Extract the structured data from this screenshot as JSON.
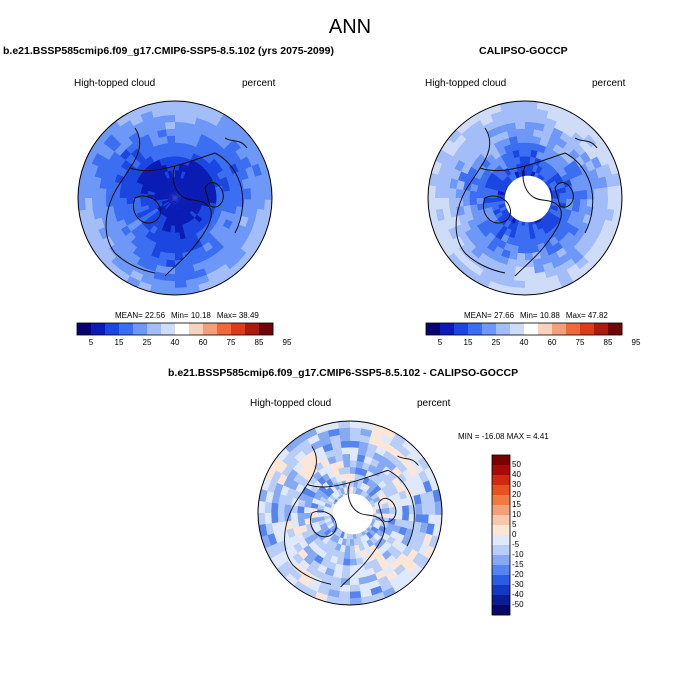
{
  "header": {
    "title": "ANN"
  },
  "panels": [
    {
      "title": "b.e21.BSSP585cmip6.f09_g17.CMIP6-SSP5-8.5.102 (yrs 2075-2099)",
      "variable": "High-topped cloud",
      "units": "percent",
      "stats": {
        "mean": "MEAN=  22.56",
        "min": "Min=  10.18",
        "max": "Max=  38.49"
      }
    },
    {
      "title": "CALIPSO-GOCCP",
      "variable": "High-topped cloud",
      "units": "percent",
      "stats": {
        "mean": "MEAN=  27.66",
        "min": "Min=  10.88",
        "max": "Max=  47.82"
      }
    },
    {
      "title": "b.e21.BSSP585cmip6.f09_g17.CMIP6-SSP5-8.5.102 - CALIPSO-GOCCP",
      "variable": "High-topped cloud",
      "units": "percent",
      "stats": {
        "minmax": "MIN = -16.08 MAX =   4.41"
      }
    }
  ],
  "chart_data": [
    {
      "type": "heatmap",
      "projection": "north polar stereographic",
      "title": "b.e21.BSSP585cmip6.f09_g17.CMIP6-SSP5-8.5.102 (yrs 2075-2099)",
      "field": "High-topped cloud",
      "units": "percent",
      "mean": 22.56,
      "min": 10.18,
      "max": 38.49,
      "colorbar": {
        "orientation": "horizontal",
        "tick_labels": [
          "5",
          "15",
          "25",
          "40",
          "60",
          "75",
          "85",
          "95"
        ],
        "colors": [
          "#08006e",
          "#0a1cb4",
          "#1b46e0",
          "#3c6ef2",
          "#6e98f7",
          "#a2bdf8",
          "#cfdcf7",
          "#ffffff",
          "#f8d2bb",
          "#f3a07a",
          "#ec6a3c",
          "#d83d1b",
          "#a81b0e",
          "#6e0606"
        ]
      }
    },
    {
      "type": "heatmap",
      "projection": "north polar stereographic",
      "title": "CALIPSO-GOCCP",
      "field": "High-topped cloud",
      "units": "percent",
      "mean": 27.66,
      "min": 10.88,
      "max": 47.82,
      "colorbar": {
        "orientation": "horizontal",
        "tick_labels": [
          "5",
          "15",
          "25",
          "40",
          "60",
          "75",
          "85",
          "95"
        ],
        "colors": [
          "#08006e",
          "#0a1cb4",
          "#1b46e0",
          "#3c6ef2",
          "#6e98f7",
          "#a2bdf8",
          "#cfdcf7",
          "#ffffff",
          "#f8d2bb",
          "#f3a07a",
          "#ec6a3c",
          "#d83d1b",
          "#a81b0e",
          "#6e0606"
        ]
      }
    },
    {
      "type": "heatmap",
      "projection": "north polar stereographic",
      "title": "b.e21.BSSP585cmip6.f09_g17.CMIP6-SSP5-8.5.102 - CALIPSO-GOCCP",
      "field": "High-topped cloud",
      "units": "percent",
      "min": -16.08,
      "max": 4.41,
      "colorbar": {
        "orientation": "vertical",
        "tick_labels": [
          "50",
          "40",
          "30",
          "20",
          "15",
          "10",
          "5",
          "0",
          "-5",
          "-10",
          "-15",
          "-20",
          "-30",
          "-40",
          "-50"
        ],
        "colors": [
          "#7a0000",
          "#a60b0b",
          "#cf2a10",
          "#e8521e",
          "#f07a40",
          "#f4a077",
          "#f7c9aa",
          "#fbe6d8",
          "#dfe9fb",
          "#b8cdf7",
          "#86a9f4",
          "#5584ef",
          "#2a5ce4",
          "#1638c0",
          "#0b1d96",
          "#050a66"
        ]
      }
    }
  ]
}
